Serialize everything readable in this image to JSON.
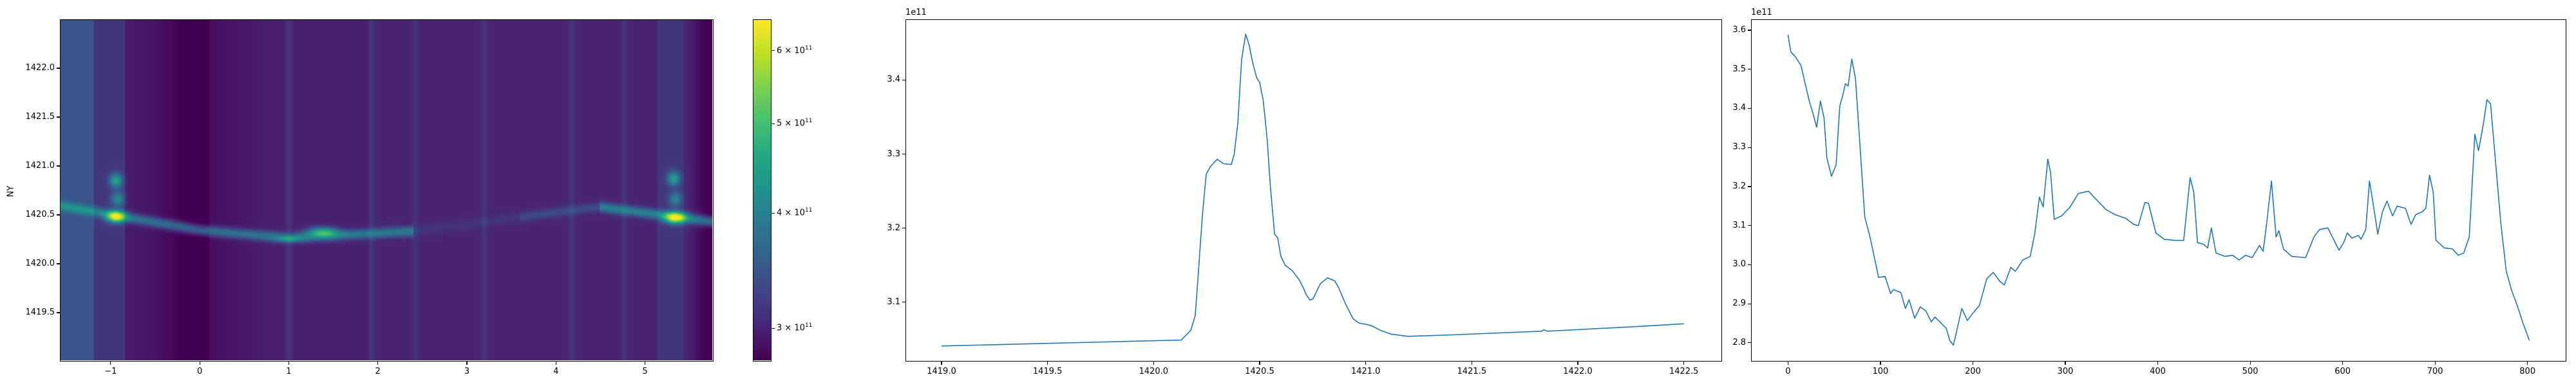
{
  "chart_data": [
    {
      "type": "heatmap",
      "colormap": "viridis",
      "ylabel": "NY",
      "xlim": [
        -1.57,
        5.77
      ],
      "ylim": [
        1419.0,
        1422.5
      ],
      "xticks": [
        "−1",
        "0",
        "1",
        "2",
        "3",
        "4",
        "5"
      ],
      "xtick_values": [
        -1,
        0,
        1,
        2,
        3,
        4,
        5
      ],
      "yticks": [
        "1419.5",
        "1420.0",
        "1420.5",
        "1421.0",
        "1421.5",
        "1422.0"
      ],
      "ytick_values": [
        1419.5,
        1420.0,
        1420.5,
        1421.0,
        1421.5,
        1422.0
      ],
      "colorbar": {
        "scale": "log",
        "range": [
          276000000000.0,
          649000000000.0
        ],
        "tick_values": [
          300000000000.0,
          400000000000.0,
          500000000000.0,
          600000000000.0
        ],
        "ticks": [
          {
            "mantissa": "3",
            "exp": "11"
          },
          {
            "mantissa": "4",
            "exp": "11"
          },
          {
            "mantissa": "5",
            "exp": "11"
          },
          {
            "mantissa": "6",
            "exp": "11"
          }
        ]
      }
    },
    {
      "type": "line",
      "color": "#1f77b4",
      "offset_label": "1e11",
      "xlim": [
        1418.83,
        1422.68
      ],
      "ylim": [
        3.02,
        3.482
      ],
      "xticks": [
        "1419.0",
        "1419.5",
        "1420.0",
        "1420.5",
        "1421.0",
        "1421.5",
        "1422.0",
        "1422.5"
      ],
      "xtick_values": [
        1419.0,
        1419.5,
        1420.0,
        1420.5,
        1421.0,
        1421.5,
        1422.0,
        1422.5
      ],
      "yticks": [
        "3.1",
        "3.2",
        "3.3",
        "3.4"
      ],
      "ytick_values": [
        3.1,
        3.2,
        3.3,
        3.4
      ],
      "x": [
        1419.0,
        1420.13,
        1420.175,
        1420.196,
        1420.21,
        1420.23,
        1420.248,
        1420.267,
        1420.3,
        1420.33,
        1420.366,
        1420.38,
        1420.397,
        1420.415,
        1420.434,
        1420.45,
        1420.468,
        1420.486,
        1420.5,
        1420.517,
        1420.535,
        1420.55,
        1420.57,
        1420.585,
        1420.6,
        1420.62,
        1420.653,
        1420.687,
        1420.705,
        1420.72,
        1420.737,
        1420.752,
        1420.786,
        1420.82,
        1420.854,
        1420.872,
        1420.906,
        1420.94,
        1420.967,
        1421.006,
        1421.03,
        1421.07,
        1421.12,
        1421.2,
        1421.41,
        1421.83,
        1421.84,
        1421.855,
        1422.26,
        1422.5
      ],
      "y": [
        3.041,
        3.049,
        3.062,
        3.082,
        3.136,
        3.218,
        3.273,
        3.283,
        3.293,
        3.287,
        3.286,
        3.3,
        3.342,
        3.428,
        3.462,
        3.448,
        3.422,
        3.403,
        3.397,
        3.372,
        3.322,
        3.258,
        3.192,
        3.187,
        3.162,
        3.15,
        3.143,
        3.13,
        3.12,
        3.11,
        3.103,
        3.105,
        3.125,
        3.133,
        3.129,
        3.12,
        3.097,
        3.078,
        3.072,
        3.07,
        3.068,
        3.062,
        3.057,
        3.054,
        3.056,
        3.061,
        3.063,
        3.061,
        3.067,
        3.071
      ]
    },
    {
      "type": "line",
      "color": "#1f77b4",
      "offset_label": "1e11",
      "xlim": [
        -40,
        842
      ],
      "ylim": [
        2.752,
        3.628
      ],
      "xticks": [
        "0",
        "100",
        "200",
        "300",
        "400",
        "500",
        "600",
        "700",
        "800"
      ],
      "xtick_values": [
        0,
        100,
        200,
        300,
        400,
        500,
        600,
        700,
        800
      ],
      "yticks": [
        "2.8",
        "2.9",
        "3.0",
        "3.1",
        "3.2",
        "3.3",
        "3.4",
        "3.5",
        "3.6"
      ],
      "ytick_values": [
        2.8,
        2.9,
        3.0,
        3.1,
        3.2,
        3.3,
        3.4,
        3.5,
        3.6
      ],
      "x": [
        0,
        3,
        8,
        14,
        18,
        23,
        27,
        31,
        35,
        39,
        42,
        47,
        52,
        56,
        59,
        62,
        65,
        69,
        73,
        78,
        83,
        88,
        92,
        98,
        105,
        111,
        114,
        122,
        127,
        131,
        137,
        143,
        149,
        155,
        159,
        167,
        171,
        175,
        179,
        188,
        194,
        200,
        207,
        215,
        222,
        229,
        234,
        241,
        246,
        254,
        262,
        267,
        272,
        276,
        281,
        284,
        288,
        296,
        305,
        314,
        325,
        335,
        344,
        354,
        365,
        374,
        379,
        386,
        390,
        398,
        407,
        419,
        428,
        435,
        439,
        443,
        449,
        454,
        458,
        463,
        473,
        481,
        488,
        495,
        502,
        510,
        514,
        518,
        523,
        528,
        531,
        536,
        545,
        560,
        569,
        575,
        584,
        596,
        601,
        605,
        610,
        617,
        620,
        625,
        629,
        634,
        638,
        643,
        648,
        654,
        659,
        668,
        674,
        679,
        686,
        690,
        694,
        698,
        701,
        710,
        719,
        725,
        731,
        737,
        743,
        747,
        752,
        756,
        760,
        765,
        771,
        777,
        783,
        789,
        795,
        802
      ],
      "y": [
        3.589,
        3.545,
        3.532,
        3.51,
        3.469,
        3.419,
        3.387,
        3.352,
        3.419,
        3.375,
        3.274,
        3.226,
        3.255,
        3.406,
        3.431,
        3.463,
        3.457,
        3.526,
        3.476,
        3.299,
        3.122,
        3.078,
        3.034,
        2.967,
        2.97,
        2.926,
        2.936,
        2.929,
        2.888,
        2.91,
        2.863,
        2.892,
        2.882,
        2.854,
        2.866,
        2.847,
        2.838,
        2.806,
        2.794,
        2.888,
        2.857,
        2.876,
        2.895,
        2.964,
        2.98,
        2.958,
        2.948,
        2.993,
        2.983,
        3.012,
        3.021,
        3.081,
        3.173,
        3.148,
        3.27,
        3.236,
        3.116,
        3.125,
        3.147,
        3.182,
        3.188,
        3.163,
        3.141,
        3.128,
        3.119,
        3.103,
        3.1,
        3.159,
        3.157,
        3.081,
        3.065,
        3.062,
        3.062,
        3.223,
        3.185,
        3.056,
        3.053,
        3.043,
        3.094,
        3.03,
        3.021,
        3.024,
        3.012,
        3.024,
        3.018,
        3.049,
        3.034,
        3.109,
        3.214,
        3.071,
        3.087,
        3.04,
        3.021,
        3.018,
        3.071,
        3.09,
        3.094,
        3.037,
        3.056,
        3.081,
        3.068,
        3.075,
        3.065,
        3.09,
        3.214,
        3.141,
        3.078,
        3.135,
        3.163,
        3.125,
        3.15,
        3.144,
        3.103,
        3.128,
        3.135,
        3.144,
        3.229,
        3.185,
        3.062,
        3.043,
        3.04,
        3.024,
        3.03,
        3.071,
        3.334,
        3.292,
        3.356,
        3.422,
        3.412,
        3.274,
        3.109,
        2.983,
        2.933,
        2.895,
        2.851,
        2.806
      ]
    }
  ]
}
